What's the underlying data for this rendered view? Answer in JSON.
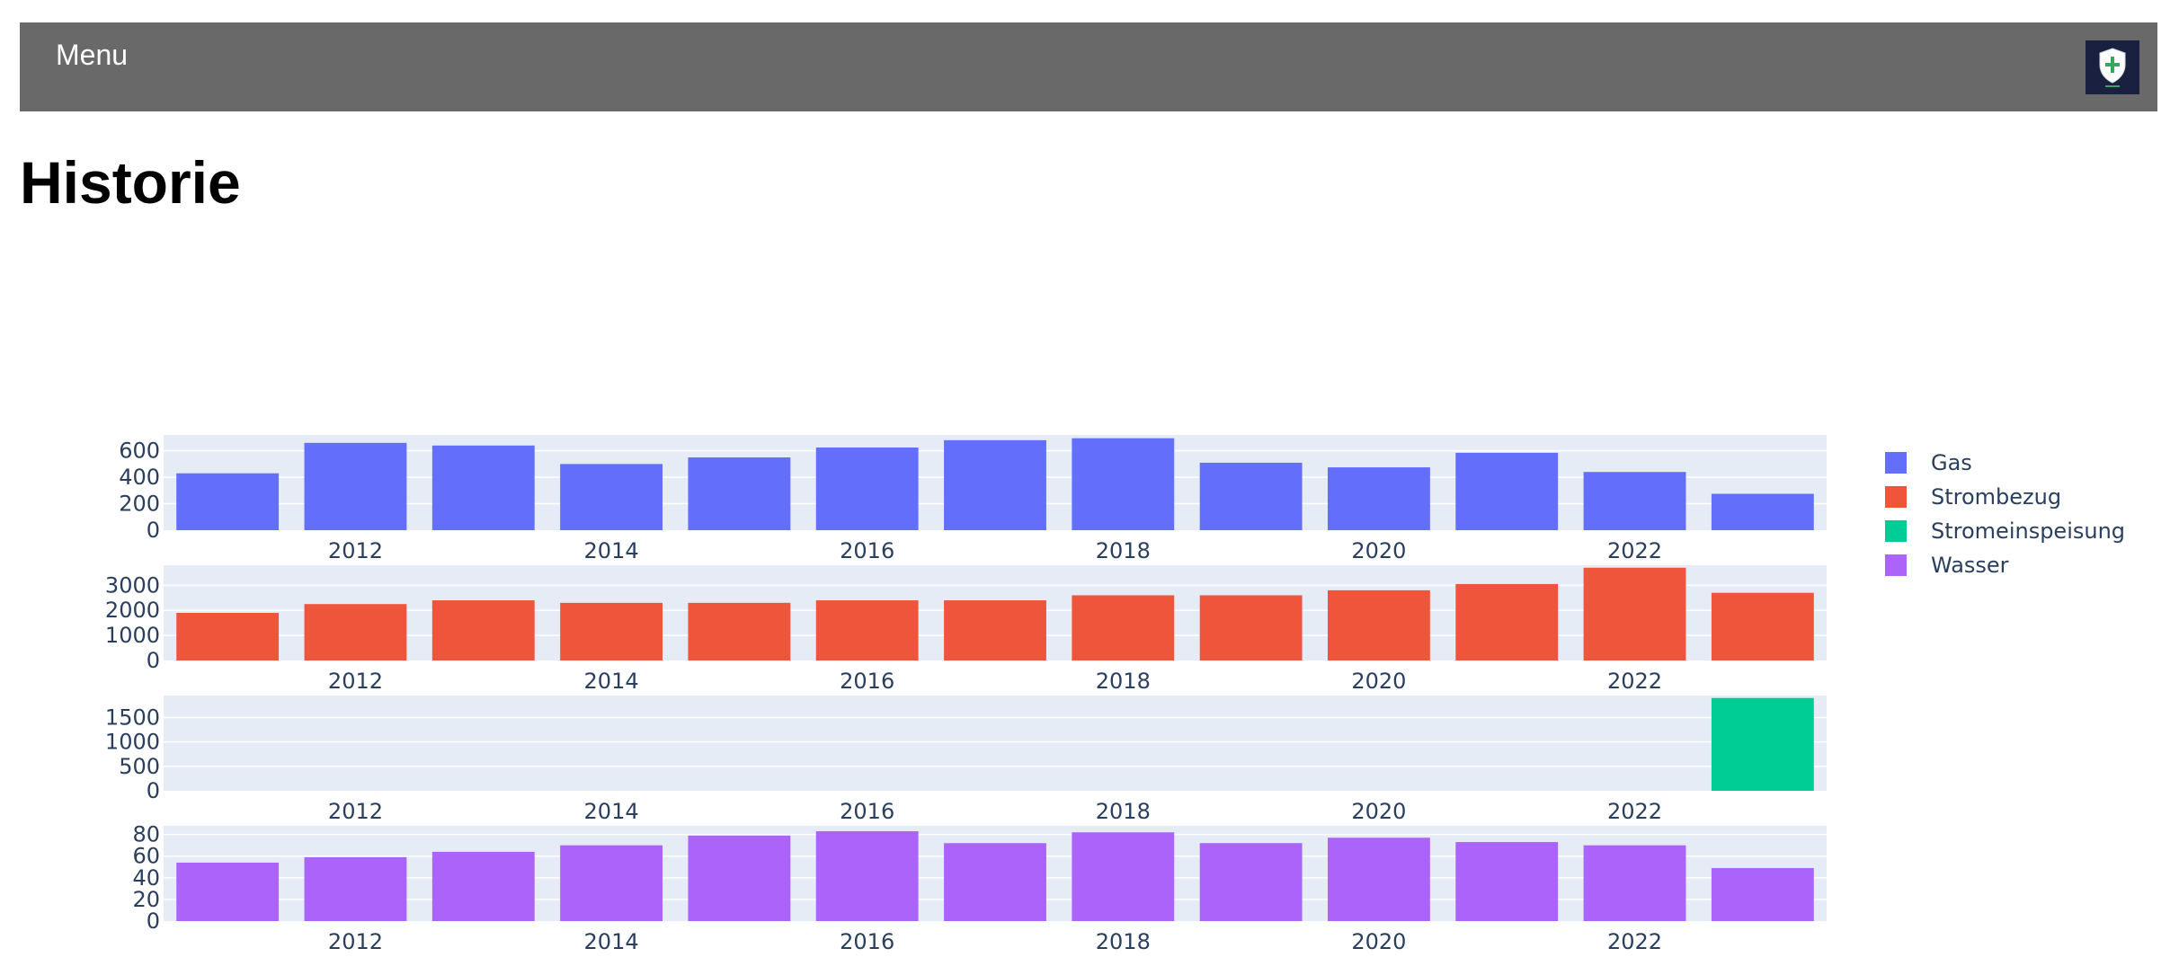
{
  "header": {
    "menu_label": "Menu",
    "logo_icon": "shield-cross-logo"
  },
  "page": {
    "title": "Historie"
  },
  "colors": {
    "topbar": "#696969",
    "plot_bg": "#e5ecf6",
    "grid": "#ffffff",
    "tick_text": "#2a3f5f"
  },
  "chart_data": {
    "type": "bar",
    "layout": "stacked-subplots",
    "x": [
      2011,
      2012,
      2013,
      2014,
      2015,
      2016,
      2017,
      2018,
      2019,
      2020,
      2021,
      2022,
      2023
    ],
    "x_tick_labels": [
      "2012",
      "2014",
      "2016",
      "2018",
      "2020",
      "2022"
    ],
    "legend_position": "right",
    "grid": true,
    "series": [
      {
        "name": "Gas",
        "color": "#636efa",
        "ylim": [
          0,
          720
        ],
        "y_tick_labels": [
          "0",
          "200",
          "400",
          "600"
        ],
        "values": [
          430,
          660,
          640,
          500,
          550,
          625,
          680,
          695,
          510,
          475,
          585,
          440,
          275
        ]
      },
      {
        "name": "Strombezug",
        "color": "#ef553b",
        "ylim": [
          0,
          3800
        ],
        "y_tick_labels": [
          "0",
          "1000",
          "2000",
          "3000"
        ],
        "values": [
          1900,
          2250,
          2400,
          2300,
          2300,
          2400,
          2400,
          2600,
          2600,
          2800,
          3050,
          3700,
          2700
        ]
      },
      {
        "name": "Stromeinspeisung",
        "color": "#00cc96",
        "ylim": [
          0,
          1950
        ],
        "y_tick_labels": [
          "0",
          "500",
          "1000",
          "1500"
        ],
        "values": [
          0,
          0,
          0,
          0,
          0,
          0,
          0,
          0,
          0,
          0,
          0,
          0,
          1900
        ]
      },
      {
        "name": "Wasser",
        "color": "#ab63fa",
        "ylim": [
          0,
          88
        ],
        "y_tick_labels": [
          "0",
          "20",
          "40",
          "60",
          "80"
        ],
        "values": [
          54,
          59,
          64,
          70,
          79,
          83,
          72,
          82,
          72,
          77,
          73,
          70,
          49
        ]
      }
    ]
  }
}
